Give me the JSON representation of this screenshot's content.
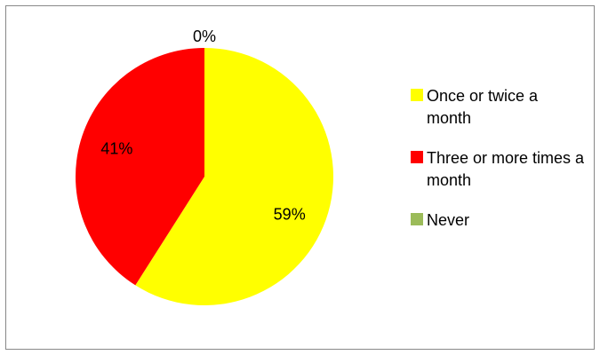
{
  "chart_data": {
    "type": "pie",
    "slices": [
      {
        "label": "Once or twice a month",
        "value": 59,
        "display": "59%",
        "color": "#FFFF00"
      },
      {
        "label": "Three or more times a month",
        "value": 41,
        "display": "41%",
        "color": "#FF0000"
      },
      {
        "label": "Never",
        "value": 0,
        "display": "0%",
        "color": "#9BBB59"
      }
    ],
    "legend_position": "right",
    "start_angle": "top, clockwise"
  },
  "legend": {
    "items": [
      {
        "label": "Once or twice a month",
        "color": "#FFFF00"
      },
      {
        "label": "Three or more times a month",
        "color": "#FF0000"
      },
      {
        "label": "Never",
        "color": "#9BBB59"
      }
    ]
  }
}
